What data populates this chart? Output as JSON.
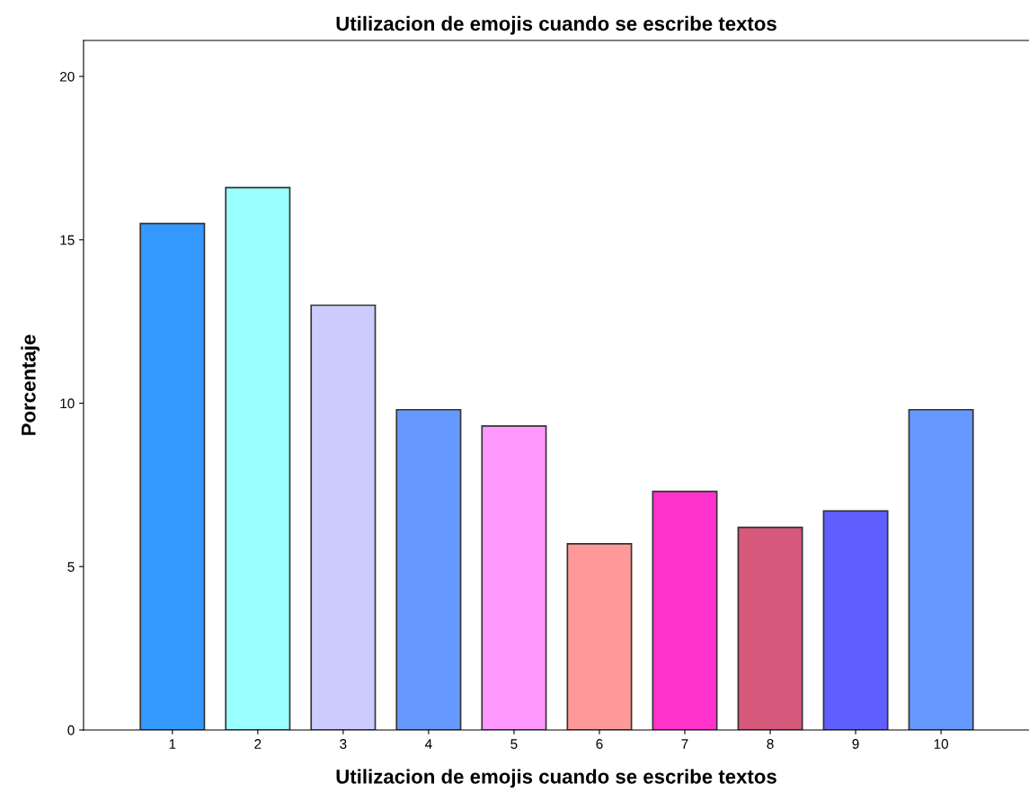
{
  "chart_data": {
    "type": "bar",
    "title": "Utilizacion de emojis cuando se escribe textos",
    "xlabel": "Utilizacion de emojis cuando se escribe textos",
    "ylabel": "Porcentaje",
    "categories": [
      "1",
      "2",
      "3",
      "4",
      "5",
      "6",
      "7",
      "8",
      "9",
      "10"
    ],
    "values": [
      15.5,
      16.6,
      13.0,
      9.8,
      9.3,
      5.7,
      7.3,
      6.2,
      6.7,
      9.8
    ],
    "colors": [
      "#3399ff",
      "#99ffff",
      "#ccccff",
      "#6699ff",
      "#ff99ff",
      "#ff9999",
      "#ff33cc",
      "#d6587a",
      "#5f5fff",
      "#6699ff"
    ],
    "ylim": [
      0,
      21.1
    ],
    "yticks": [
      0,
      5,
      10,
      15,
      20
    ],
    "grid": false,
    "legend": false
  }
}
